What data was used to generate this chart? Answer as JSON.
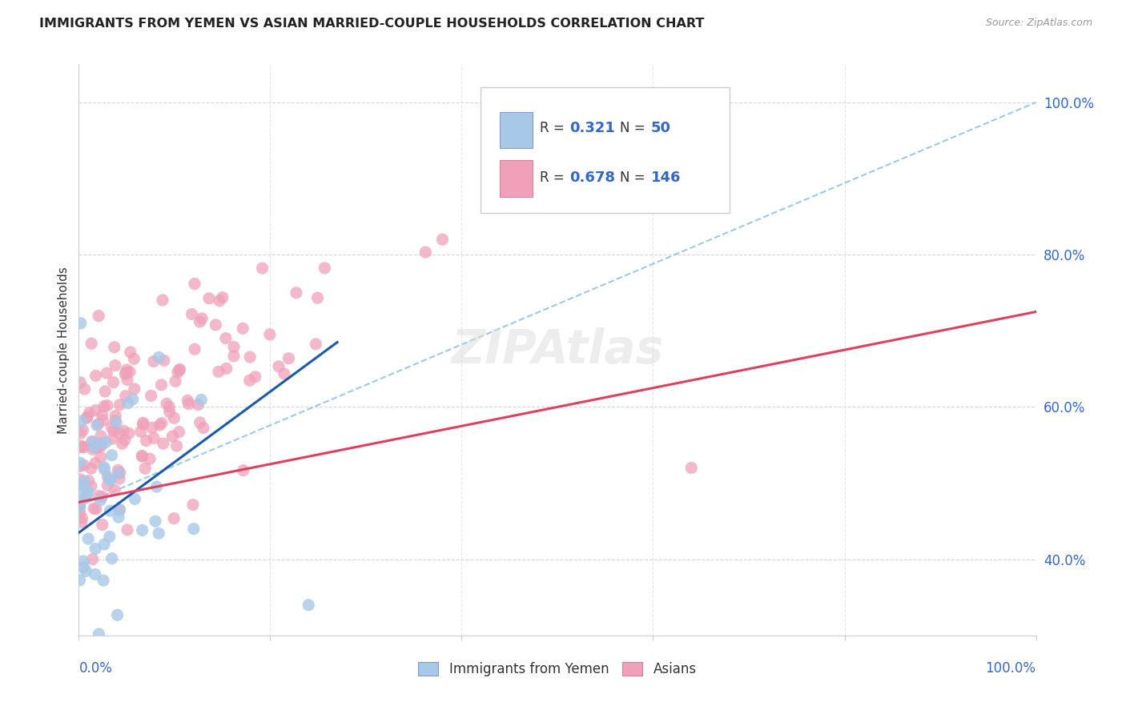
{
  "title": "IMMIGRANTS FROM YEMEN VS ASIAN MARRIED-COUPLE HOUSEHOLDS CORRELATION CHART",
  "source": "Source: ZipAtlas.com",
  "ylabel": "Married-couple Households",
  "legend_blue_r": "0.321",
  "legend_blue_n": "50",
  "legend_pink_r": "0.678",
  "legend_pink_n": "146",
  "legend_label_blue": "Immigrants from Yemen",
  "legend_label_pink": "Asians",
  "blue_scatter_color": "#a8c8e8",
  "pink_scatter_color": "#f0a0b8",
  "blue_line_color": "#1a5aaa",
  "pink_line_color": "#e04060",
  "dashed_line_color": "#88bbdd",
  "background_color": "#ffffff",
  "grid_color": "#cccccc",
  "text_color": "#333333",
  "axis_label_color": "#3366cc",
  "title_color": "#222222",
  "source_color": "#999999",
  "xlim": [
    0.0,
    1.0
  ],
  "ylim": [
    0.3,
    1.05
  ],
  "yticks": [
    0.4,
    0.6,
    0.8,
    1.0
  ],
  "ytick_labels": [
    "40.0%",
    "60.0%",
    "80.0%",
    "100.0%"
  ],
  "xtick_labels_show": [
    "0.0%",
    "100.0%"
  ],
  "blue_line": {
    "x0": 0.0,
    "y0": 0.435,
    "x1": 0.27,
    "y1": 0.685
  },
  "pink_line": {
    "x0": 0.0,
    "y0": 0.475,
    "x1": 1.0,
    "y1": 0.725
  },
  "dashed_line": {
    "x0": 0.0,
    "y0": 0.47,
    "x1": 1.0,
    "y1": 1.0
  }
}
